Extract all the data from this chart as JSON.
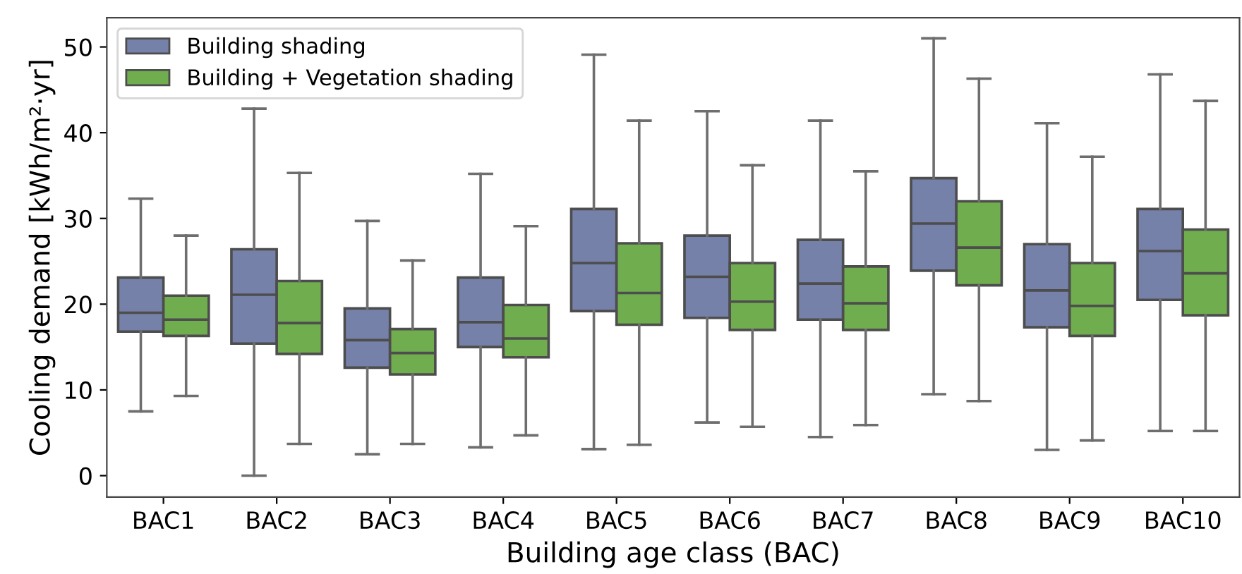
{
  "chart_data": {
    "type": "box",
    "xlabel": "Building age class (BAC)",
    "ylabel": "Cooling demand [kWh/m²·yr]",
    "categories": [
      "BAC1",
      "BAC2",
      "BAC3",
      "BAC4",
      "BAC5",
      "BAC6",
      "BAC7",
      "BAC8",
      "BAC9",
      "BAC10"
    ],
    "ylim": [
      -2.5,
      53.4
    ],
    "yticks": [
      0,
      10,
      20,
      30,
      40,
      50
    ],
    "grid": false,
    "legend": "top left",
    "series": [
      {
        "name": "Building shading",
        "color": "#7581a9",
        "boxes": [
          {
            "low": 7.5,
            "q1": 16.8,
            "median": 19.0,
            "q3": 23.1,
            "high": 32.3
          },
          {
            "low": 0.0,
            "q1": 15.4,
            "median": 21.1,
            "q3": 26.4,
            "high": 42.8
          },
          {
            "low": 2.5,
            "q1": 12.6,
            "median": 15.8,
            "q3": 19.5,
            "high": 29.7
          },
          {
            "low": 3.3,
            "q1": 15.0,
            "median": 17.9,
            "q3": 23.1,
            "high": 35.2
          },
          {
            "low": 3.1,
            "q1": 19.2,
            "median": 24.8,
            "q3": 31.1,
            "high": 49.1
          },
          {
            "low": 6.2,
            "q1": 18.4,
            "median": 23.2,
            "q3": 28.0,
            "high": 42.5
          },
          {
            "low": 4.5,
            "q1": 18.2,
            "median": 22.4,
            "q3": 27.5,
            "high": 41.4
          },
          {
            "low": 9.5,
            "q1": 23.9,
            "median": 29.4,
            "q3": 34.7,
            "high": 51.0
          },
          {
            "low": 3.0,
            "q1": 17.3,
            "median": 21.6,
            "q3": 27.0,
            "high": 41.1
          },
          {
            "low": 5.2,
            "q1": 20.5,
            "median": 26.2,
            "q3": 31.1,
            "high": 46.8
          }
        ]
      },
      {
        "name": "Building + Vegetation shading",
        "color": "#6fad4f",
        "boxes": [
          {
            "low": 9.3,
            "q1": 16.3,
            "median": 18.2,
            "q3": 21.0,
            "high": 28.0
          },
          {
            "low": 3.7,
            "q1": 14.2,
            "median": 17.8,
            "q3": 22.7,
            "high": 35.3
          },
          {
            "low": 3.7,
            "q1": 11.8,
            "median": 14.3,
            "q3": 17.1,
            "high": 25.1
          },
          {
            "low": 4.7,
            "q1": 13.8,
            "median": 16.0,
            "q3": 19.9,
            "high": 29.1
          },
          {
            "low": 3.6,
            "q1": 17.6,
            "median": 21.3,
            "q3": 27.1,
            "high": 41.4
          },
          {
            "low": 5.7,
            "q1": 17.0,
            "median": 20.3,
            "q3": 24.8,
            "high": 36.2
          },
          {
            "low": 5.9,
            "q1": 17.0,
            "median": 20.1,
            "q3": 24.4,
            "high": 35.5
          },
          {
            "low": 8.7,
            "q1": 22.2,
            "median": 26.6,
            "q3": 32.0,
            "high": 46.3
          },
          {
            "low": 4.1,
            "q1": 16.3,
            "median": 19.8,
            "q3": 24.8,
            "high": 37.2
          },
          {
            "low": 5.2,
            "q1": 18.7,
            "median": 23.6,
            "q3": 28.7,
            "high": 43.7
          }
        ]
      }
    ]
  }
}
